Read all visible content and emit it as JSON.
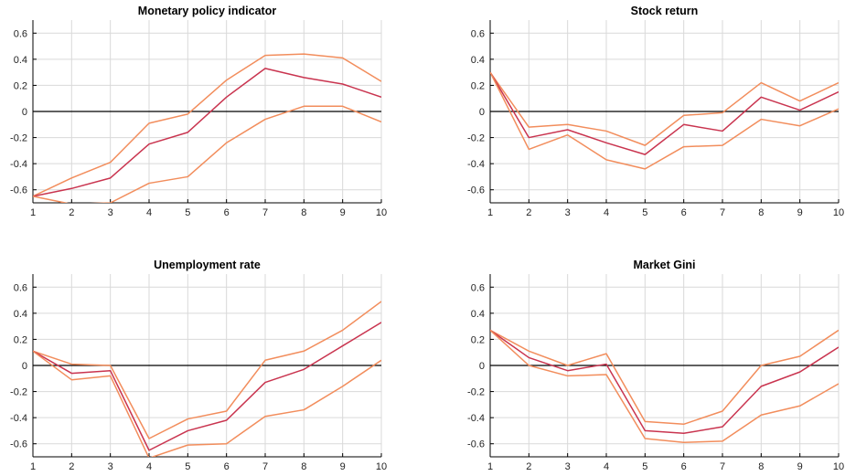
{
  "chart_data": [
    {
      "type": "line",
      "title": "Monetary policy indicator",
      "x": [
        1,
        2,
        3,
        4,
        5,
        6,
        7,
        8,
        9,
        10
      ],
      "xlim": [
        1,
        10
      ],
      "ylim": [
        -0.7,
        0.7
      ],
      "yticks": [
        -0.6,
        -0.4,
        -0.2,
        0,
        0.2,
        0.4,
        0.6
      ],
      "ytick_labels": [
        "-0.6",
        "-0.4",
        "-0.2",
        "0",
        "0.2",
        "0.4",
        "0.6"
      ],
      "xtick_labels": [
        "1",
        "2",
        "3",
        "4",
        "5",
        "6",
        "7",
        "8",
        "9",
        "10"
      ],
      "grid": true,
      "zero_line": true,
      "series": [
        {
          "role": "upper",
          "color": "#f28d5c",
          "values": [
            -0.65,
            -0.51,
            -0.39,
            -0.09,
            -0.02,
            0.24,
            0.43,
            0.44,
            0.41,
            0.23
          ]
        },
        {
          "role": "median",
          "color": "#c9344f",
          "values": [
            -0.65,
            -0.59,
            -0.51,
            -0.25,
            -0.16,
            0.11,
            0.33,
            0.26,
            0.21,
            0.11
          ]
        },
        {
          "role": "lower",
          "color": "#f28d5c",
          "values": [
            -0.65,
            -0.71,
            -0.7,
            -0.55,
            -0.5,
            -0.24,
            -0.06,
            0.04,
            0.04,
            -0.08
          ]
        }
      ]
    },
    {
      "type": "line",
      "title": "Stock return",
      "x": [
        1,
        2,
        3,
        4,
        5,
        6,
        7,
        8,
        9,
        10
      ],
      "xlim": [
        1,
        10
      ],
      "ylim": [
        -0.7,
        0.7
      ],
      "yticks": [
        -0.6,
        -0.4,
        -0.2,
        0,
        0.2,
        0.4,
        0.6
      ],
      "ytick_labels": [
        "-0.6",
        "-0.4",
        "-0.2",
        "0",
        "0.2",
        "0.4",
        "0.6"
      ],
      "xtick_labels": [
        "1",
        "2",
        "3",
        "4",
        "5",
        "6",
        "7",
        "8",
        "9",
        "10"
      ],
      "grid": true,
      "zero_line": true,
      "series": [
        {
          "role": "upper",
          "color": "#f28d5c",
          "values": [
            0.3,
            -0.12,
            -0.1,
            -0.15,
            -0.26,
            -0.03,
            -0.01,
            0.22,
            0.08,
            0.22
          ]
        },
        {
          "role": "median",
          "color": "#c9344f",
          "values": [
            0.3,
            -0.2,
            -0.14,
            -0.24,
            -0.33,
            -0.1,
            -0.15,
            0.11,
            0.01,
            0.15
          ]
        },
        {
          "role": "lower",
          "color": "#f28d5c",
          "values": [
            0.3,
            -0.29,
            -0.18,
            -0.37,
            -0.44,
            -0.27,
            -0.26,
            -0.06,
            -0.11,
            0.02
          ]
        }
      ]
    },
    {
      "type": "line",
      "title": "Unemployment rate",
      "x": [
        1,
        2,
        3,
        4,
        5,
        6,
        7,
        8,
        9,
        10
      ],
      "xlim": [
        1,
        10
      ],
      "ylim": [
        -0.7,
        0.7
      ],
      "yticks": [
        -0.6,
        -0.4,
        -0.2,
        0,
        0.2,
        0.4,
        0.6
      ],
      "ytick_labels": [
        "-0.6",
        "-0.4",
        "-0.2",
        "0",
        "0.2",
        "0.4",
        "0.6"
      ],
      "xtick_labels": [
        "1",
        "2",
        "3",
        "4",
        "5",
        "6",
        "7",
        "8",
        "9",
        "10"
      ],
      "grid": true,
      "zero_line": true,
      "series": [
        {
          "role": "upper",
          "color": "#f28d5c",
          "values": [
            0.11,
            0.01,
            0.0,
            -0.56,
            -0.41,
            -0.35,
            0.04,
            0.11,
            0.27,
            0.49
          ]
        },
        {
          "role": "median",
          "color": "#c9344f",
          "values": [
            0.11,
            -0.06,
            -0.04,
            -0.65,
            -0.5,
            -0.42,
            -0.13,
            -0.03,
            0.15,
            0.33
          ]
        },
        {
          "role": "lower",
          "color": "#f28d5c",
          "values": [
            0.11,
            -0.11,
            -0.08,
            -0.71,
            -0.61,
            -0.6,
            -0.39,
            -0.34,
            -0.16,
            0.04
          ]
        }
      ]
    },
    {
      "type": "line",
      "title": "Market Gini",
      "x": [
        1,
        2,
        3,
        4,
        5,
        6,
        7,
        8,
        9,
        10
      ],
      "xlim": [
        1,
        10
      ],
      "ylim": [
        -0.7,
        0.7
      ],
      "yticks": [
        -0.6,
        -0.4,
        -0.2,
        0,
        0.2,
        0.4,
        0.6
      ],
      "ytick_labels": [
        "-0.6",
        "-0.4",
        "-0.2",
        "0",
        "0.2",
        "0.4",
        "0.6"
      ],
      "xtick_labels": [
        "1",
        "2",
        "3",
        "4",
        "5",
        "6",
        "7",
        "8",
        "9",
        "10"
      ],
      "grid": true,
      "zero_line": true,
      "series": [
        {
          "role": "upper",
          "color": "#f28d5c",
          "values": [
            0.27,
            0.11,
            0.0,
            0.09,
            -0.43,
            -0.45,
            -0.35,
            0.0,
            0.07,
            0.27
          ]
        },
        {
          "role": "median",
          "color": "#c9344f",
          "values": [
            0.27,
            0.06,
            -0.04,
            0.01,
            -0.5,
            -0.52,
            -0.47,
            -0.16,
            -0.05,
            0.14
          ]
        },
        {
          "role": "lower",
          "color": "#f28d5c",
          "values": [
            0.27,
            0.0,
            -0.08,
            -0.07,
            -0.56,
            -0.59,
            -0.58,
            -0.38,
            -0.31,
            -0.14
          ]
        }
      ]
    }
  ]
}
